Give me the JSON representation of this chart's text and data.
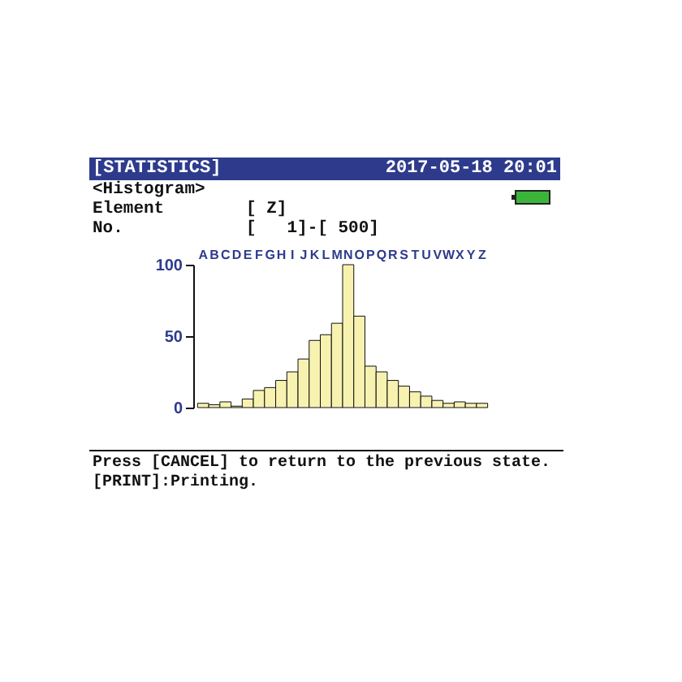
{
  "chart_data": {
    "type": "bar",
    "title": "[STATISTICS]",
    "subtitle": "2017-05-18 20:01",
    "annotations": [
      "<Histogram>",
      "Element        [ Z]",
      "No.            [   1]-[ 500]",
      "Press [CANCEL] to return to the previous state. [PRINT]:Printing."
    ],
    "categories": [
      "A",
      "B",
      "C",
      "D",
      "E",
      "F",
      "G",
      "H",
      "I",
      "J",
      "K",
      "L",
      "M",
      "N",
      "O",
      "P",
      "Q",
      "R",
      "S",
      "T",
      "U",
      "V",
      "W",
      "X",
      "Y",
      "Z"
    ],
    "values": [
      3,
      2,
      4,
      1,
      6,
      12,
      14,
      19,
      25,
      34,
      47,
      51,
      59,
      100,
      64,
      29,
      25,
      19,
      15,
      11,
      8,
      5,
      3,
      4,
      3,
      3
    ],
    "color": "#f7f2b0",
    "ylim": [
      0,
      100
    ],
    "yticks": [
      0,
      50,
      100
    ],
    "grid": false
  }
}
